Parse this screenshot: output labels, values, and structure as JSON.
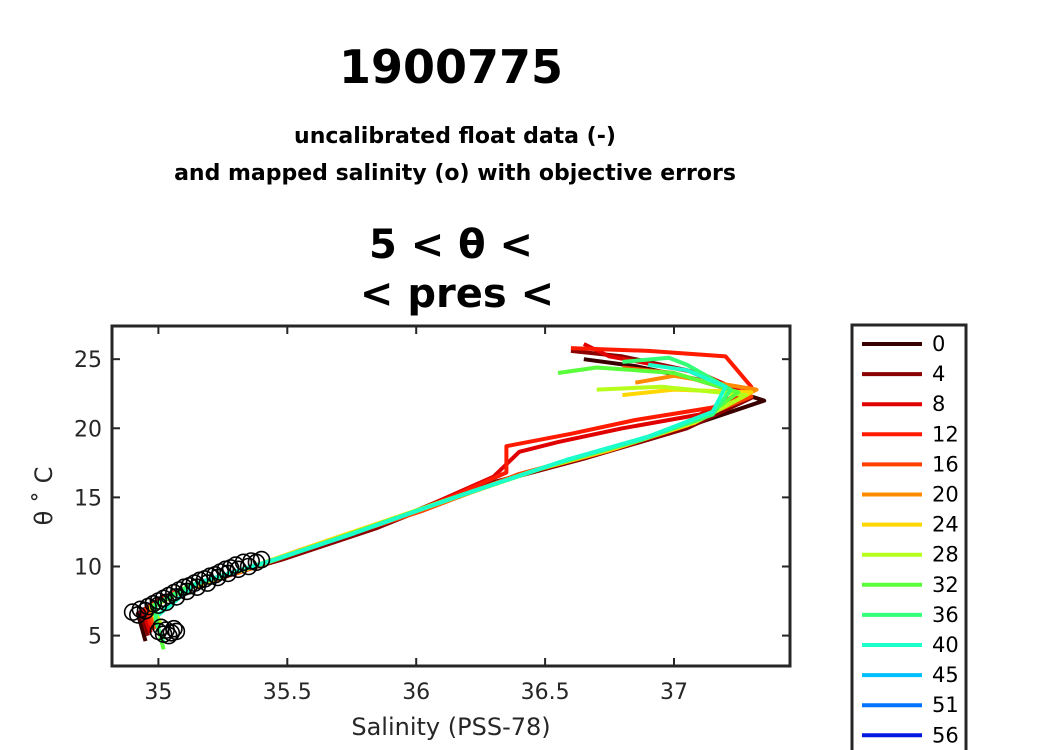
{
  "chart_data": {
    "type": "line",
    "title": "1900775",
    "subtitle_lines": [
      "uncalibrated float data (-)",
      "and mapped salinity (o) with objective errors"
    ],
    "range_title_lines": [
      "5 < θ <",
      "< pres <"
    ],
    "xlabel": "Salinity (PSS-78)",
    "ylabel": "θ ˚ C",
    "xlim": [
      34.82,
      37.45
    ],
    "ylim": [
      2.8,
      27.4
    ],
    "xticks": [
      35,
      35.5,
      36,
      36.5,
      37
    ],
    "xtick_labels": [
      "35",
      "35.5",
      "36",
      "36.5",
      "37"
    ],
    "yticks": [
      5,
      10,
      15,
      20,
      25
    ],
    "ytick_labels": [
      "5",
      "10",
      "15",
      "20",
      "25"
    ],
    "legend": {
      "placement": "outside-right",
      "entries": [
        {
          "label": "0",
          "color": "#3a0000"
        },
        {
          "label": "4",
          "color": "#8b0000"
        },
        {
          "label": "8",
          "color": "#e00000"
        },
        {
          "label": "12",
          "color": "#ff1a00"
        },
        {
          "label": "16",
          "color": "#ff4000"
        },
        {
          "label": "20",
          "color": "#ff8c00"
        },
        {
          "label": "24",
          "color": "#ffd700"
        },
        {
          "label": "28",
          "color": "#b5ff1a"
        },
        {
          "label": "32",
          "color": "#5aff3c"
        },
        {
          "label": "36",
          "color": "#33ff77"
        },
        {
          "label": "40",
          "color": "#1affcc"
        },
        {
          "label": "45",
          "color": "#00bfff"
        },
        {
          "label": "51",
          "color": "#0073ff"
        },
        {
          "label": "56",
          "color": "#0018e0"
        }
      ]
    },
    "series": [
      {
        "name": "0",
        "color": "#3a0000",
        "points": [
          [
            34.95,
            4.6
          ],
          [
            34.92,
            6.6
          ],
          [
            35.0,
            7.6
          ],
          [
            35.2,
            9.0
          ],
          [
            35.45,
            10.4
          ],
          [
            35.8,
            12.5
          ],
          [
            36.2,
            15.6
          ],
          [
            36.6,
            17.6
          ],
          [
            37.0,
            19.8
          ],
          [
            37.35,
            22.0
          ],
          [
            37.1,
            23.5
          ],
          [
            36.85,
            24.5
          ],
          [
            36.65,
            25.0
          ]
        ]
      },
      {
        "name": "4",
        "color": "#8b0000",
        "points": [
          [
            34.96,
            5.0
          ],
          [
            34.93,
            6.7
          ],
          [
            35.02,
            7.8
          ],
          [
            35.22,
            9.1
          ],
          [
            35.48,
            10.5
          ],
          [
            35.85,
            12.8
          ],
          [
            36.25,
            15.8
          ],
          [
            36.65,
            17.8
          ],
          [
            37.05,
            20.0
          ],
          [
            37.3,
            22.2
          ],
          [
            37.05,
            24.2
          ],
          [
            36.8,
            25.2
          ],
          [
            36.6,
            25.6
          ]
        ]
      },
      {
        "name": "8",
        "color": "#e00000",
        "points": [
          [
            34.97,
            5.2
          ],
          [
            34.94,
            6.8
          ],
          [
            35.05,
            8.0
          ],
          [
            35.3,
            9.5
          ],
          [
            35.55,
            11.2
          ],
          [
            35.95,
            13.6
          ],
          [
            36.3,
            16.5
          ],
          [
            36.4,
            18.3
          ],
          [
            36.55,
            19.0
          ],
          [
            36.8,
            20.0
          ],
          [
            37.1,
            21.0
          ],
          [
            37.28,
            22.5
          ],
          [
            37.1,
            24.0
          ],
          [
            36.75,
            25.2
          ],
          [
            36.65,
            26.1
          ]
        ]
      },
      {
        "name": "12",
        "color": "#ff1a00",
        "points": [
          [
            34.98,
            5.4
          ],
          [
            34.95,
            6.9
          ],
          [
            35.06,
            8.1
          ],
          [
            35.32,
            9.6
          ],
          [
            35.58,
            11.3
          ],
          [
            36.0,
            13.9
          ],
          [
            36.35,
            16.8
          ],
          [
            36.35,
            18.7
          ],
          [
            36.6,
            19.6
          ],
          [
            36.85,
            20.6
          ],
          [
            37.15,
            21.5
          ],
          [
            37.3,
            23.0
          ],
          [
            37.2,
            25.2
          ],
          [
            36.9,
            25.6
          ],
          [
            36.6,
            25.8
          ]
        ]
      },
      {
        "name": "16",
        "color": "#ff4000",
        "points": [
          [
            34.99,
            5.5
          ],
          [
            34.96,
            7.0
          ],
          [
            35.08,
            8.2
          ],
          [
            35.35,
            9.8
          ],
          [
            35.6,
            11.5
          ],
          [
            36.02,
            14.0
          ],
          [
            36.4,
            16.7
          ],
          [
            36.7,
            18.2
          ],
          [
            37.0,
            20.0
          ],
          [
            37.3,
            22.3
          ],
          [
            37.0,
            24.0
          ],
          [
            36.8,
            24.4
          ]
        ]
      },
      {
        "name": "20",
        "color": "#ff8c00",
        "points": [
          [
            35.0,
            5.6
          ],
          [
            34.97,
            7.0
          ],
          [
            35.1,
            8.3
          ],
          [
            35.38,
            10.0
          ],
          [
            35.65,
            11.8
          ],
          [
            36.05,
            14.3
          ],
          [
            36.45,
            16.9
          ],
          [
            36.75,
            18.4
          ],
          [
            37.05,
            20.2
          ],
          [
            37.32,
            22.8
          ],
          [
            37.0,
            23.8
          ],
          [
            36.85,
            23.3
          ]
        ]
      },
      {
        "name": "24",
        "color": "#ffd700",
        "points": [
          [
            35.0,
            5.7
          ],
          [
            34.97,
            7.1
          ],
          [
            35.1,
            8.4
          ],
          [
            35.38,
            10.1
          ],
          [
            35.66,
            11.9
          ],
          [
            36.07,
            14.5
          ],
          [
            36.47,
            17.0
          ],
          [
            36.78,
            18.6
          ],
          [
            37.08,
            20.4
          ],
          [
            37.3,
            22.6
          ],
          [
            37.0,
            22.8
          ],
          [
            36.8,
            22.4
          ]
        ]
      },
      {
        "name": "28",
        "color": "#b5ff1a",
        "points": [
          [
            35.01,
            5.8
          ],
          [
            34.98,
            7.1
          ],
          [
            35.12,
            8.5
          ],
          [
            35.4,
            10.2
          ],
          [
            35.7,
            12.1
          ],
          [
            36.1,
            14.7
          ],
          [
            36.5,
            17.2
          ],
          [
            36.8,
            18.8
          ],
          [
            37.1,
            20.6
          ],
          [
            37.28,
            22.4
          ],
          [
            36.95,
            23.0
          ],
          [
            36.7,
            22.8
          ]
        ]
      },
      {
        "name": "32",
        "color": "#5aff3c",
        "points": [
          [
            35.02,
            4.0
          ],
          [
            35.0,
            5.5
          ],
          [
            34.98,
            7.2
          ],
          [
            35.12,
            8.6
          ],
          [
            35.42,
            10.3
          ],
          [
            35.72,
            12.2
          ],
          [
            36.12,
            14.8
          ],
          [
            36.52,
            17.3
          ],
          [
            36.84,
            19.0
          ],
          [
            37.12,
            20.8
          ],
          [
            37.25,
            22.6
          ],
          [
            37.0,
            24.0
          ],
          [
            36.7,
            24.4
          ],
          [
            36.55,
            24.0
          ]
        ]
      },
      {
        "name": "36",
        "color": "#33ff77",
        "points": [
          [
            35.02,
            4.5
          ],
          [
            34.99,
            6.0
          ],
          [
            34.99,
            7.3
          ],
          [
            35.14,
            8.7
          ],
          [
            35.44,
            10.4
          ],
          [
            35.74,
            12.3
          ],
          [
            36.15,
            15.0
          ],
          [
            36.55,
            17.5
          ],
          [
            36.88,
            19.2
          ],
          [
            37.15,
            21.0
          ],
          [
            37.22,
            22.8
          ],
          [
            37.05,
            24.6
          ],
          [
            36.98,
            25.1
          ],
          [
            36.8,
            24.8
          ]
        ]
      },
      {
        "name": "40",
        "color": "#1affcc",
        "points": [
          [
            35.0,
            6.5
          ],
          [
            35.15,
            8.8
          ],
          [
            35.45,
            10.5
          ],
          [
            35.76,
            12.4
          ],
          [
            36.18,
            15.2
          ],
          [
            36.58,
            17.7
          ],
          [
            36.9,
            19.4
          ],
          [
            37.15,
            21.2
          ],
          [
            37.2,
            23.0
          ],
          [
            37.05,
            24.2
          ],
          [
            36.9,
            24.6
          ]
        ]
      }
    ],
    "mapped_salinity_points": [
      [
        34.9,
        6.7
      ],
      [
        34.93,
        6.9
      ],
      [
        34.96,
        7.1
      ],
      [
        34.98,
        7.3
      ],
      [
        35.0,
        7.5
      ],
      [
        35.02,
        7.7
      ],
      [
        35.04,
        7.9
      ],
      [
        35.06,
        8.1
      ],
      [
        35.08,
        8.3
      ],
      [
        35.1,
        8.5
      ],
      [
        35.12,
        8.6
      ],
      [
        35.14,
        8.8
      ],
      [
        35.16,
        9.0
      ],
      [
        35.18,
        9.1
      ],
      [
        35.2,
        9.3
      ],
      [
        35.22,
        9.4
      ],
      [
        35.24,
        9.6
      ],
      [
        35.26,
        9.8
      ],
      [
        35.28,
        9.9
      ],
      [
        35.3,
        10.1
      ],
      [
        35.33,
        10.3
      ],
      [
        35.36,
        10.4
      ],
      [
        35.4,
        10.5
      ],
      [
        34.92,
        6.5
      ],
      [
        34.95,
        6.8
      ],
      [
        35.0,
        7.2
      ],
      [
        35.03,
        7.4
      ],
      [
        35.07,
        7.8
      ],
      [
        35.11,
        8.2
      ],
      [
        35.15,
        8.5
      ],
      [
        35.19,
        8.8
      ],
      [
        35.23,
        9.2
      ],
      [
        35.27,
        9.5
      ],
      [
        35.31,
        9.8
      ],
      [
        35.35,
        10.0
      ],
      [
        35.38,
        10.3
      ],
      [
        35.01,
        5.6
      ],
      [
        35.03,
        5.4
      ],
      [
        35.05,
        5.2
      ],
      [
        35.02,
        5.1
      ],
      [
        35.06,
        5.5
      ],
      [
        35.04,
        5.0
      ],
      [
        35.07,
        5.3
      ],
      [
        35.0,
        5.3
      ]
    ]
  }
}
